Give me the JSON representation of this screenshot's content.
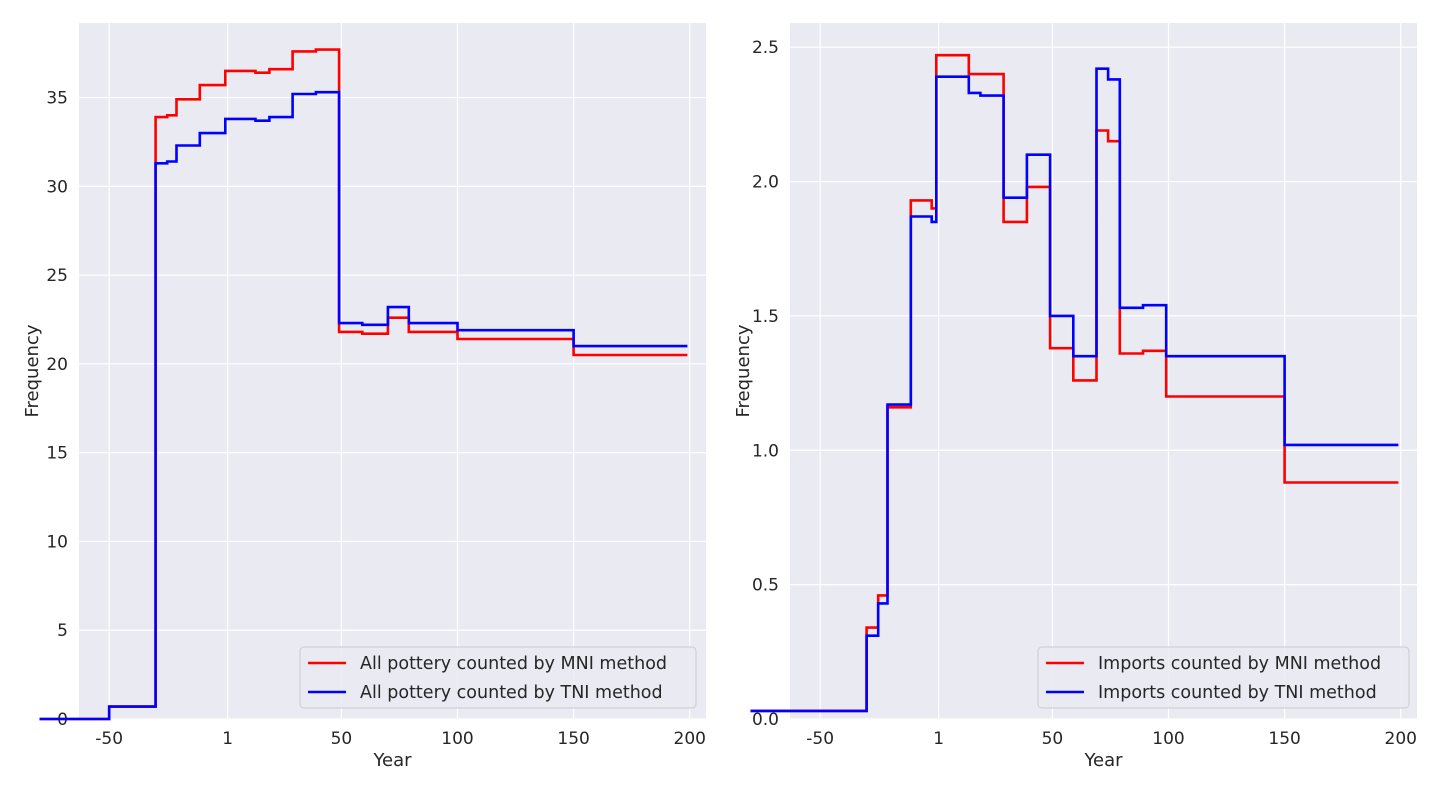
{
  "chart_data": [
    {
      "type": "line",
      "xlabel": "Year",
      "ylabel": "Frequency",
      "x_tick_labels": [
        "-50",
        "1",
        "50",
        "100",
        "150",
        "200"
      ],
      "x_tick_values": [
        -50,
        1,
        50,
        100,
        150,
        200
      ],
      "y_tick_labels": [
        "0",
        "5",
        "10",
        "15",
        "20",
        "25",
        "30",
        "35"
      ],
      "y_tick_values": [
        0,
        5,
        10,
        15,
        20,
        25,
        30,
        35
      ],
      "xlim": [
        -63,
        207
      ],
      "ylim": [
        0,
        39.2
      ],
      "grid": true,
      "legend_position": "lower-right",
      "series": [
        {
          "name": "All pottery counted by MNI method",
          "color": "#ff0000",
          "points": [
            [
              -80,
              0
            ],
            [
              -50,
              0
            ],
            [
              -50,
              0.7
            ],
            [
              -30,
              0.7
            ],
            [
              -30,
              33.9
            ],
            [
              -25,
              33.9
            ],
            [
              -25,
              34.0
            ],
            [
              -21,
              34.0
            ],
            [
              -21,
              34.9
            ],
            [
              -11,
              34.9
            ],
            [
              -11,
              35.7
            ],
            [
              0,
              35.7
            ],
            [
              0,
              36.5
            ],
            [
              13,
              36.5
            ],
            [
              13,
              36.4
            ],
            [
              19,
              36.4
            ],
            [
              19,
              36.6
            ],
            [
              29,
              36.6
            ],
            [
              29,
              37.6
            ],
            [
              39,
              37.6
            ],
            [
              39,
              37.7
            ],
            [
              49,
              37.7
            ],
            [
              49,
              21.8
            ],
            [
              59,
              21.8
            ],
            [
              59,
              21.7
            ],
            [
              70,
              21.7
            ],
            [
              70,
              22.6
            ],
            [
              79,
              22.6
            ],
            [
              79,
              21.8
            ],
            [
              100,
              21.8
            ],
            [
              100,
              21.4
            ],
            [
              150,
              21.4
            ],
            [
              150,
              20.5
            ],
            [
              199,
              20.5
            ]
          ]
        },
        {
          "name": "All pottery counted by TNI method",
          "color": "#0000ff",
          "points": [
            [
              -80,
              0
            ],
            [
              -50,
              0
            ],
            [
              -50,
              0.7
            ],
            [
              -30,
              0.7
            ],
            [
              -30,
              31.3
            ],
            [
              -25,
              31.3
            ],
            [
              -25,
              31.4
            ],
            [
              -21,
              31.4
            ],
            [
              -21,
              32.3
            ],
            [
              -11,
              32.3
            ],
            [
              -11,
              33.0
            ],
            [
              0,
              33.0
            ],
            [
              0,
              33.8
            ],
            [
              13,
              33.8
            ],
            [
              13,
              33.7
            ],
            [
              19,
              33.7
            ],
            [
              19,
              33.9
            ],
            [
              29,
              33.9
            ],
            [
              29,
              35.2
            ],
            [
              39,
              35.2
            ],
            [
              39,
              35.3
            ],
            [
              49,
              35.3
            ],
            [
              49,
              22.3
            ],
            [
              59,
              22.3
            ],
            [
              59,
              22.2
            ],
            [
              70,
              22.2
            ],
            [
              70,
              23.2
            ],
            [
              79,
              23.2
            ],
            [
              79,
              22.3
            ],
            [
              100,
              22.3
            ],
            [
              100,
              21.9
            ],
            [
              150,
              21.9
            ],
            [
              150,
              21.0
            ],
            [
              199,
              21.0
            ]
          ]
        }
      ]
    },
    {
      "type": "line",
      "xlabel": "Year",
      "ylabel": "Frequency",
      "x_tick_labels": [
        "-50",
        "1",
        "50",
        "100",
        "150",
        "200"
      ],
      "x_tick_values": [
        -50,
        1,
        50,
        100,
        150,
        200
      ],
      "y_tick_labels": [
        "0.0",
        "0.5",
        "1.0",
        "1.5",
        "2.0",
        "2.5"
      ],
      "y_tick_values": [
        0,
        0.5,
        1.0,
        1.5,
        2.0,
        2.5
      ],
      "xlim": [
        -63,
        207
      ],
      "ylim": [
        0,
        2.59
      ],
      "grid": true,
      "legend_position": "lower-right",
      "series": [
        {
          "name": "Imports counted by MNI method",
          "color": "#ff0000",
          "points": [
            [
              -80,
              0.03
            ],
            [
              -30,
              0.03
            ],
            [
              -30,
              0.34
            ],
            [
              -25,
              0.34
            ],
            [
              -25,
              0.46
            ],
            [
              -21,
              0.46
            ],
            [
              -21,
              1.16
            ],
            [
              -11,
              1.16
            ],
            [
              -11,
              1.93
            ],
            [
              -2,
              1.93
            ],
            [
              -2,
              1.9
            ],
            [
              0,
              1.9
            ],
            [
              0,
              2.47
            ],
            [
              14,
              2.47
            ],
            [
              14,
              2.4
            ],
            [
              29,
              2.4
            ],
            [
              29,
              1.85
            ],
            [
              39,
              1.85
            ],
            [
              39,
              1.98
            ],
            [
              49,
              1.98
            ],
            [
              49,
              1.38
            ],
            [
              59,
              1.38
            ],
            [
              59,
              1.26
            ],
            [
              69,
              1.26
            ],
            [
              69,
              2.19
            ],
            [
              74,
              2.19
            ],
            [
              74,
              2.15
            ],
            [
              79,
              2.15
            ],
            [
              79,
              1.36
            ],
            [
              89,
              1.36
            ],
            [
              89,
              1.37
            ],
            [
              99,
              1.37
            ],
            [
              99,
              1.2
            ],
            [
              150,
              1.2
            ],
            [
              150,
              0.88
            ],
            [
              199,
              0.88
            ]
          ]
        },
        {
          "name": "Imports counted by TNI method",
          "color": "#0000ff",
          "points": [
            [
              -80,
              0.03
            ],
            [
              -30,
              0.03
            ],
            [
              -30,
              0.31
            ],
            [
              -25,
              0.31
            ],
            [
              -25,
              0.43
            ],
            [
              -21,
              0.43
            ],
            [
              -21,
              1.17
            ],
            [
              -11,
              1.17
            ],
            [
              -11,
              1.87
            ],
            [
              -2,
              1.87
            ],
            [
              -2,
              1.85
            ],
            [
              0,
              1.85
            ],
            [
              0,
              2.39
            ],
            [
              14,
              2.39
            ],
            [
              14,
              2.33
            ],
            [
              19,
              2.33
            ],
            [
              19,
              2.32
            ],
            [
              29,
              2.32
            ],
            [
              29,
              1.94
            ],
            [
              39,
              1.94
            ],
            [
              39,
              2.1
            ],
            [
              49,
              2.1
            ],
            [
              49,
              1.5
            ],
            [
              59,
              1.5
            ],
            [
              59,
              1.35
            ],
            [
              69,
              1.35
            ],
            [
              69,
              2.42
            ],
            [
              74,
              2.42
            ],
            [
              74,
              2.38
            ],
            [
              79,
              2.38
            ],
            [
              79,
              1.53
            ],
            [
              89,
              1.53
            ],
            [
              89,
              1.54
            ],
            [
              99,
              1.54
            ],
            [
              99,
              1.35
            ],
            [
              150,
              1.35
            ],
            [
              150,
              1.02
            ],
            [
              199,
              1.02
            ]
          ]
        }
      ]
    }
  ]
}
